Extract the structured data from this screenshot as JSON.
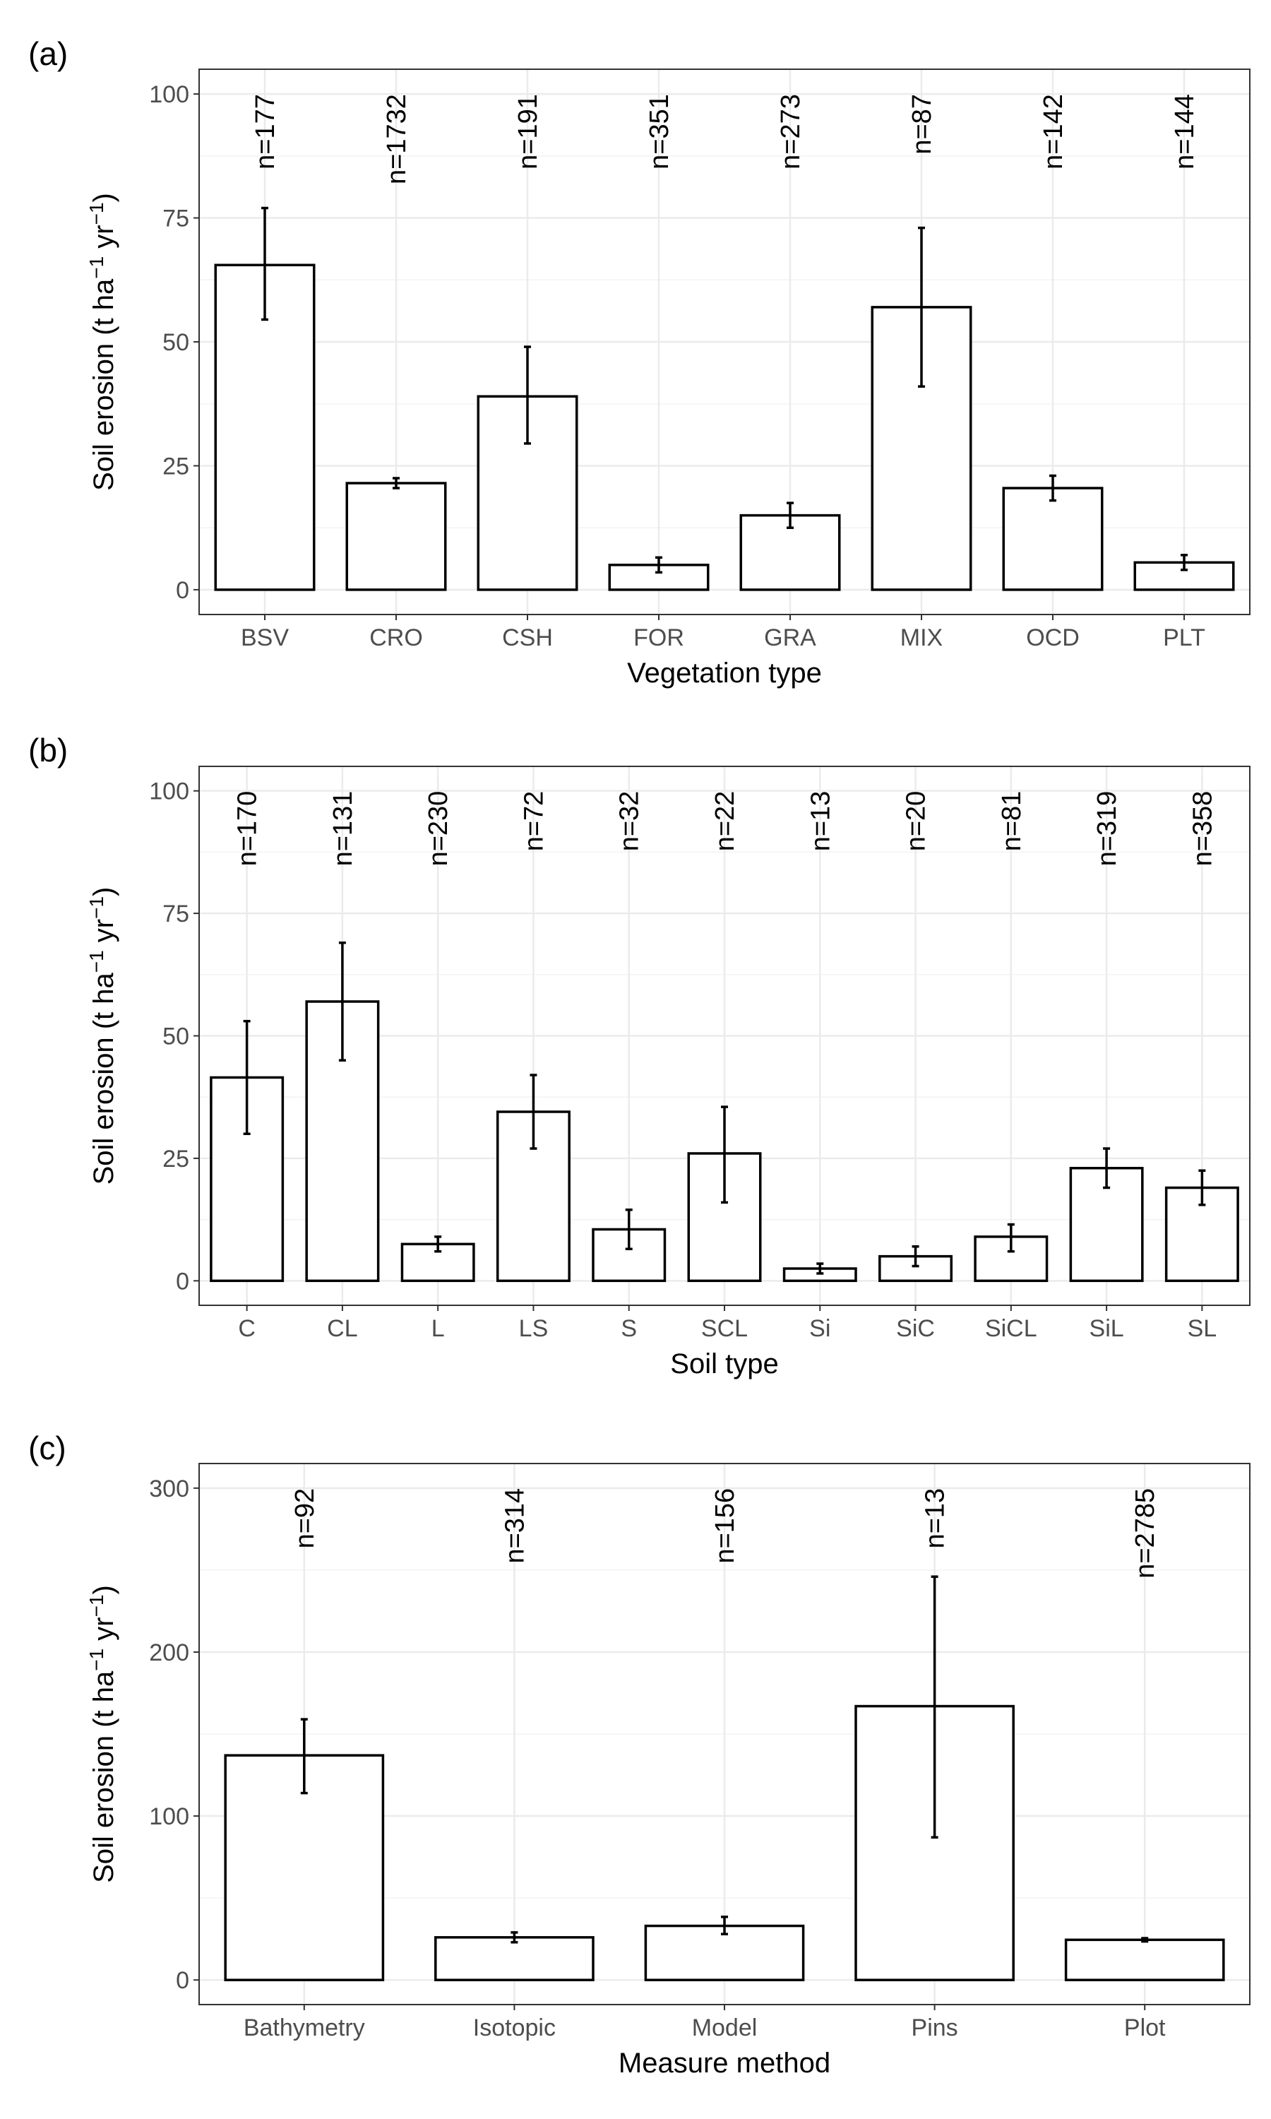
{
  "chart_data": [
    {
      "panel_label": "(a)",
      "type": "bar",
      "xlabel": "Vegetation type",
      "ylabel_main": "Soil erosion (t ha",
      "ylabel_sup1": "−1",
      "ylabel_mid": " yr",
      "ylabel_sup2": "−1",
      "ylabel_end": ")",
      "ylim": [
        -5,
        105
      ],
      "yticks": [
        0,
        25,
        50,
        75,
        100
      ],
      "ytick_labels": [
        "0",
        "25",
        "50",
        "75",
        "100"
      ],
      "n_label_y": 100,
      "categories": [
        "BSV",
        "CRO",
        "CSH",
        "FOR",
        "GRA",
        "MIX",
        "OCD",
        "PLT"
      ],
      "values": [
        65.5,
        21.5,
        39,
        5,
        15,
        57,
        20.5,
        5.5
      ],
      "error_low": [
        54.5,
        20.5,
        29.5,
        3.5,
        12.5,
        41,
        18,
        4
      ],
      "error_high": [
        77,
        22.5,
        49,
        6.5,
        17.5,
        73,
        23,
        7
      ],
      "n_labels": [
        "n=177",
        "n=1732",
        "n=191",
        "n=351",
        "n=273",
        "n=87",
        "n=142",
        "n=144"
      ],
      "grid": true
    },
    {
      "panel_label": "(b)",
      "type": "bar",
      "xlabel": "Soil type",
      "ylabel_main": "Soil erosion (t ha",
      "ylabel_sup1": "−1",
      "ylabel_mid": " yr",
      "ylabel_sup2": "−1",
      "ylabel_end": ")",
      "ylim": [
        -5,
        105
      ],
      "yticks": [
        0,
        25,
        50,
        75,
        100
      ],
      "ytick_labels": [
        "0",
        "25",
        "50",
        "75",
        "100"
      ],
      "n_label_y": 100,
      "categories": [
        "C",
        "CL",
        "L",
        "LS",
        "S",
        "SCL",
        "Si",
        "SiC",
        "SiCL",
        "SiL",
        "SL"
      ],
      "values": [
        41.5,
        57,
        7.5,
        34.5,
        10.5,
        26,
        2.5,
        5,
        9,
        23,
        19
      ],
      "error_low": [
        30,
        45,
        6,
        27,
        6.5,
        16,
        1.5,
        3,
        6,
        19,
        15.5
      ],
      "error_high": [
        53,
        69,
        9,
        42,
        14.5,
        35.5,
        3.5,
        7,
        11.5,
        27,
        22.5
      ],
      "n_labels": [
        "n=170",
        "n=131",
        "n=230",
        "n=72",
        "n=32",
        "n=22",
        "n=13",
        "n=20",
        "n=81",
        "n=319",
        "n=358"
      ],
      "grid": true
    },
    {
      "panel_label": "(c)",
      "type": "bar",
      "xlabel": "Measure method",
      "ylabel_main": "Soil erosion (t ha",
      "ylabel_sup1": "−1",
      "ylabel_mid": " yr",
      "ylabel_sup2": "−1",
      "ylabel_end": ")",
      "ylim": [
        -15,
        315
      ],
      "yticks": [
        0,
        100,
        200,
        300
      ],
      "ytick_labels": [
        "0",
        "100",
        "200",
        "300"
      ],
      "n_label_y": 300,
      "categories": [
        "Bathymetry",
        "Isotopic",
        "Model",
        "Pins",
        "Plot"
      ],
      "values": [
        137,
        26,
        33,
        167,
        24.5
      ],
      "error_low": [
        114,
        23,
        28,
        87,
        23.5
      ],
      "error_high": [
        159,
        29,
        38.5,
        246,
        25.5
      ],
      "n_labels": [
        "n=92",
        "n=314",
        "n=156",
        "n=13",
        "n=2785"
      ],
      "grid": true
    }
  ]
}
